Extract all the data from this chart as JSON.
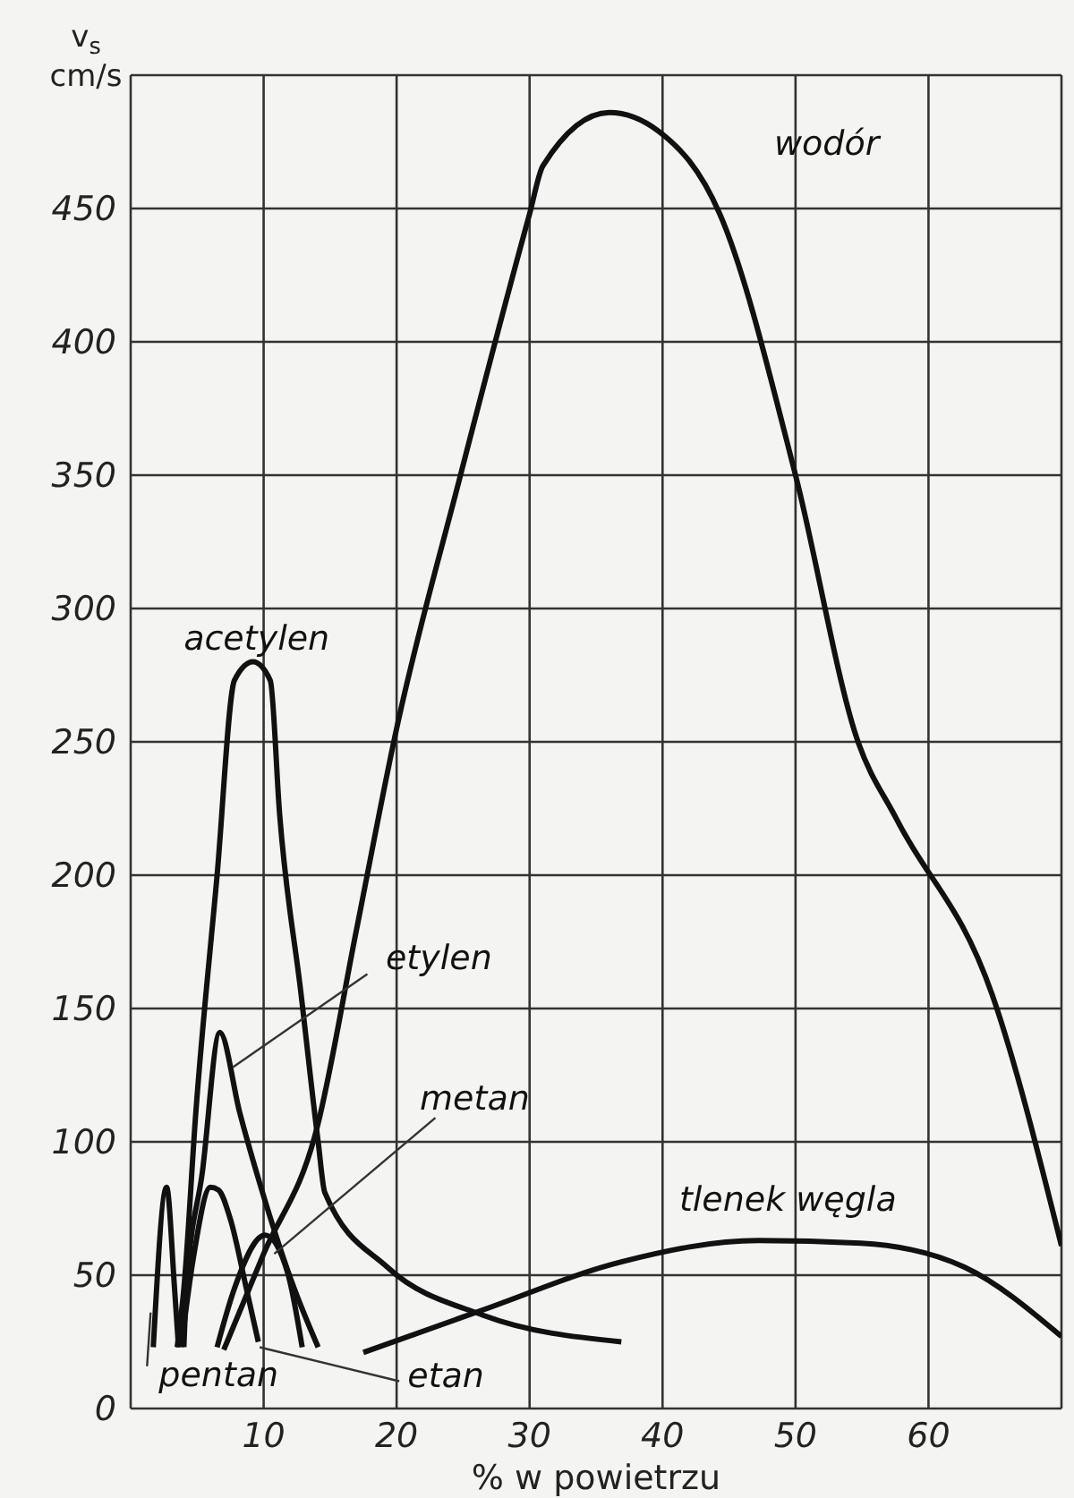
{
  "chart_data": {
    "type": "line",
    "xlabel": "% w powietrzu",
    "ylabel": "v$_{s}$ cm/s",
    "xlim": [
      0,
      70
    ],
    "ylim": [
      0,
      500
    ],
    "xticks": [
      {
        "value": 0,
        "label": null
      },
      10,
      20,
      30,
      40,
      50,
      60,
      {
        "value": 70,
        "label": null
      }
    ],
    "yticks": [
      0,
      50,
      100,
      150,
      200,
      250,
      300,
      350,
      400,
      450,
      {
        "value": 500,
        "label": null
      }
    ],
    "grid": true,
    "marker": "none",
    "line_style": "solid",
    "legend": false,
    "series": [
      {
        "color": "#111111",
        "x": [
          7,
          10,
          14,
          17,
          20,
          24.7,
          30,
          31,
          36,
          39.7,
          44.3,
          50,
          54.7,
          57.6,
          64.8,
          70
        ],
        "values": [
          22,
          58,
          105,
          180,
          255,
          348,
          448,
          466,
          486,
          479,
          448,
          350,
          250,
          221,
          155,
          61
        ]
      },
      {
        "color": "#111111",
        "x": [
          3.5,
          4,
          4.9,
          6.5,
          7.8,
          9.2,
          10.5,
          11.2,
          12.8,
          14.1,
          14.6,
          19.3,
          26.5,
          36.9
        ],
        "values": [
          23,
          45,
          111,
          200,
          273,
          280,
          273,
          223,
          156,
          100,
          81,
          53,
          35,
          25
        ]
      },
      {
        "color": "#111111",
        "x": [
          4,
          4.2,
          5.4,
          6.7,
          8.2,
          10.1,
          12.3,
          14.1
        ],
        "values": [
          23,
          45,
          89,
          141,
          111,
          78,
          45,
          23
        ]
      },
      {
        "color": "#111111",
        "x": [
          6.5,
          7.8,
          10.1,
          11.8,
          12.9
        ],
        "values": [
          23,
          45,
          65,
          51,
          23
        ]
      },
      {
        "color": "#111111",
        "x": [
          3.8,
          4.7,
          6,
          6.6,
          7.5,
          8.7,
          9.6
        ],
        "values": [
          23,
          56,
          83,
          82,
          71,
          45,
          25
        ]
      },
      {
        "color": "#111111",
        "x": [
          1.7,
          2.7,
          3.3,
          3.6
        ],
        "values": [
          23,
          83,
          45,
          23
        ]
      },
      {
        "color": "#111111",
        "x": [
          17.5,
          26.5,
          36.9,
          47.2,
          54.9,
          62.7,
          70
        ],
        "values": [
          21,
          37,
          55,
          63,
          62,
          53,
          27
        ]
      }
    ],
    "annotations": [
      {
        "text": "wodór",
        "x": 44,
        "y": 452
      },
      {
        "text": "acetylen",
        "x": 9.2,
        "y": 280
      },
      {
        "text": "etylen",
        "x": 7.7,
        "y": 128
      },
      {
        "text": "metan",
        "x": 10.8,
        "y": 58
      },
      {
        "text": "pentan",
        "x": 1.5,
        "y": 36
      },
      {
        "text": "etan",
        "x": 9.7,
        "y": 23
      },
      {
        "text": "tlenek węgla",
        "x": 47,
        "y": 63
      }
    ]
  }
}
